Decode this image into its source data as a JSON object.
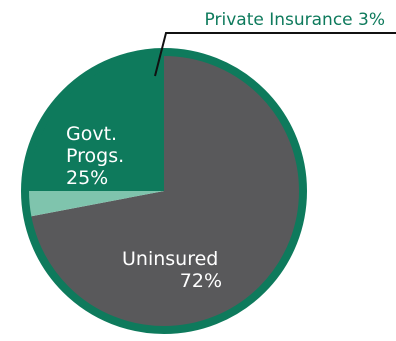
{
  "chart_data": {
    "type": "pie",
    "title": "",
    "slices": [
      {
        "label": "Uninsured",
        "value": 72,
        "display": "72%",
        "color": "#59595b"
      },
      {
        "label": "Private Insurance",
        "value": 3,
        "display": "3%",
        "color": "#7fc4ad"
      },
      {
        "label": "Govt. Progs.",
        "value": 25,
        "display": "25%",
        "color": "#0e7a5c"
      }
    ],
    "labels": {
      "private": "Private Insurance 3%",
      "govt_line1": "Govt.",
      "govt_line2": "Progs.",
      "govt_pct": "25%",
      "uninsured": "Uninsured",
      "uninsured_pct": "72%"
    },
    "colors": {
      "ring": "#0e7a5c",
      "callout_text": "#0e7a5c",
      "leader_line": "#111111",
      "label_on_slice": "#ffffff"
    }
  }
}
